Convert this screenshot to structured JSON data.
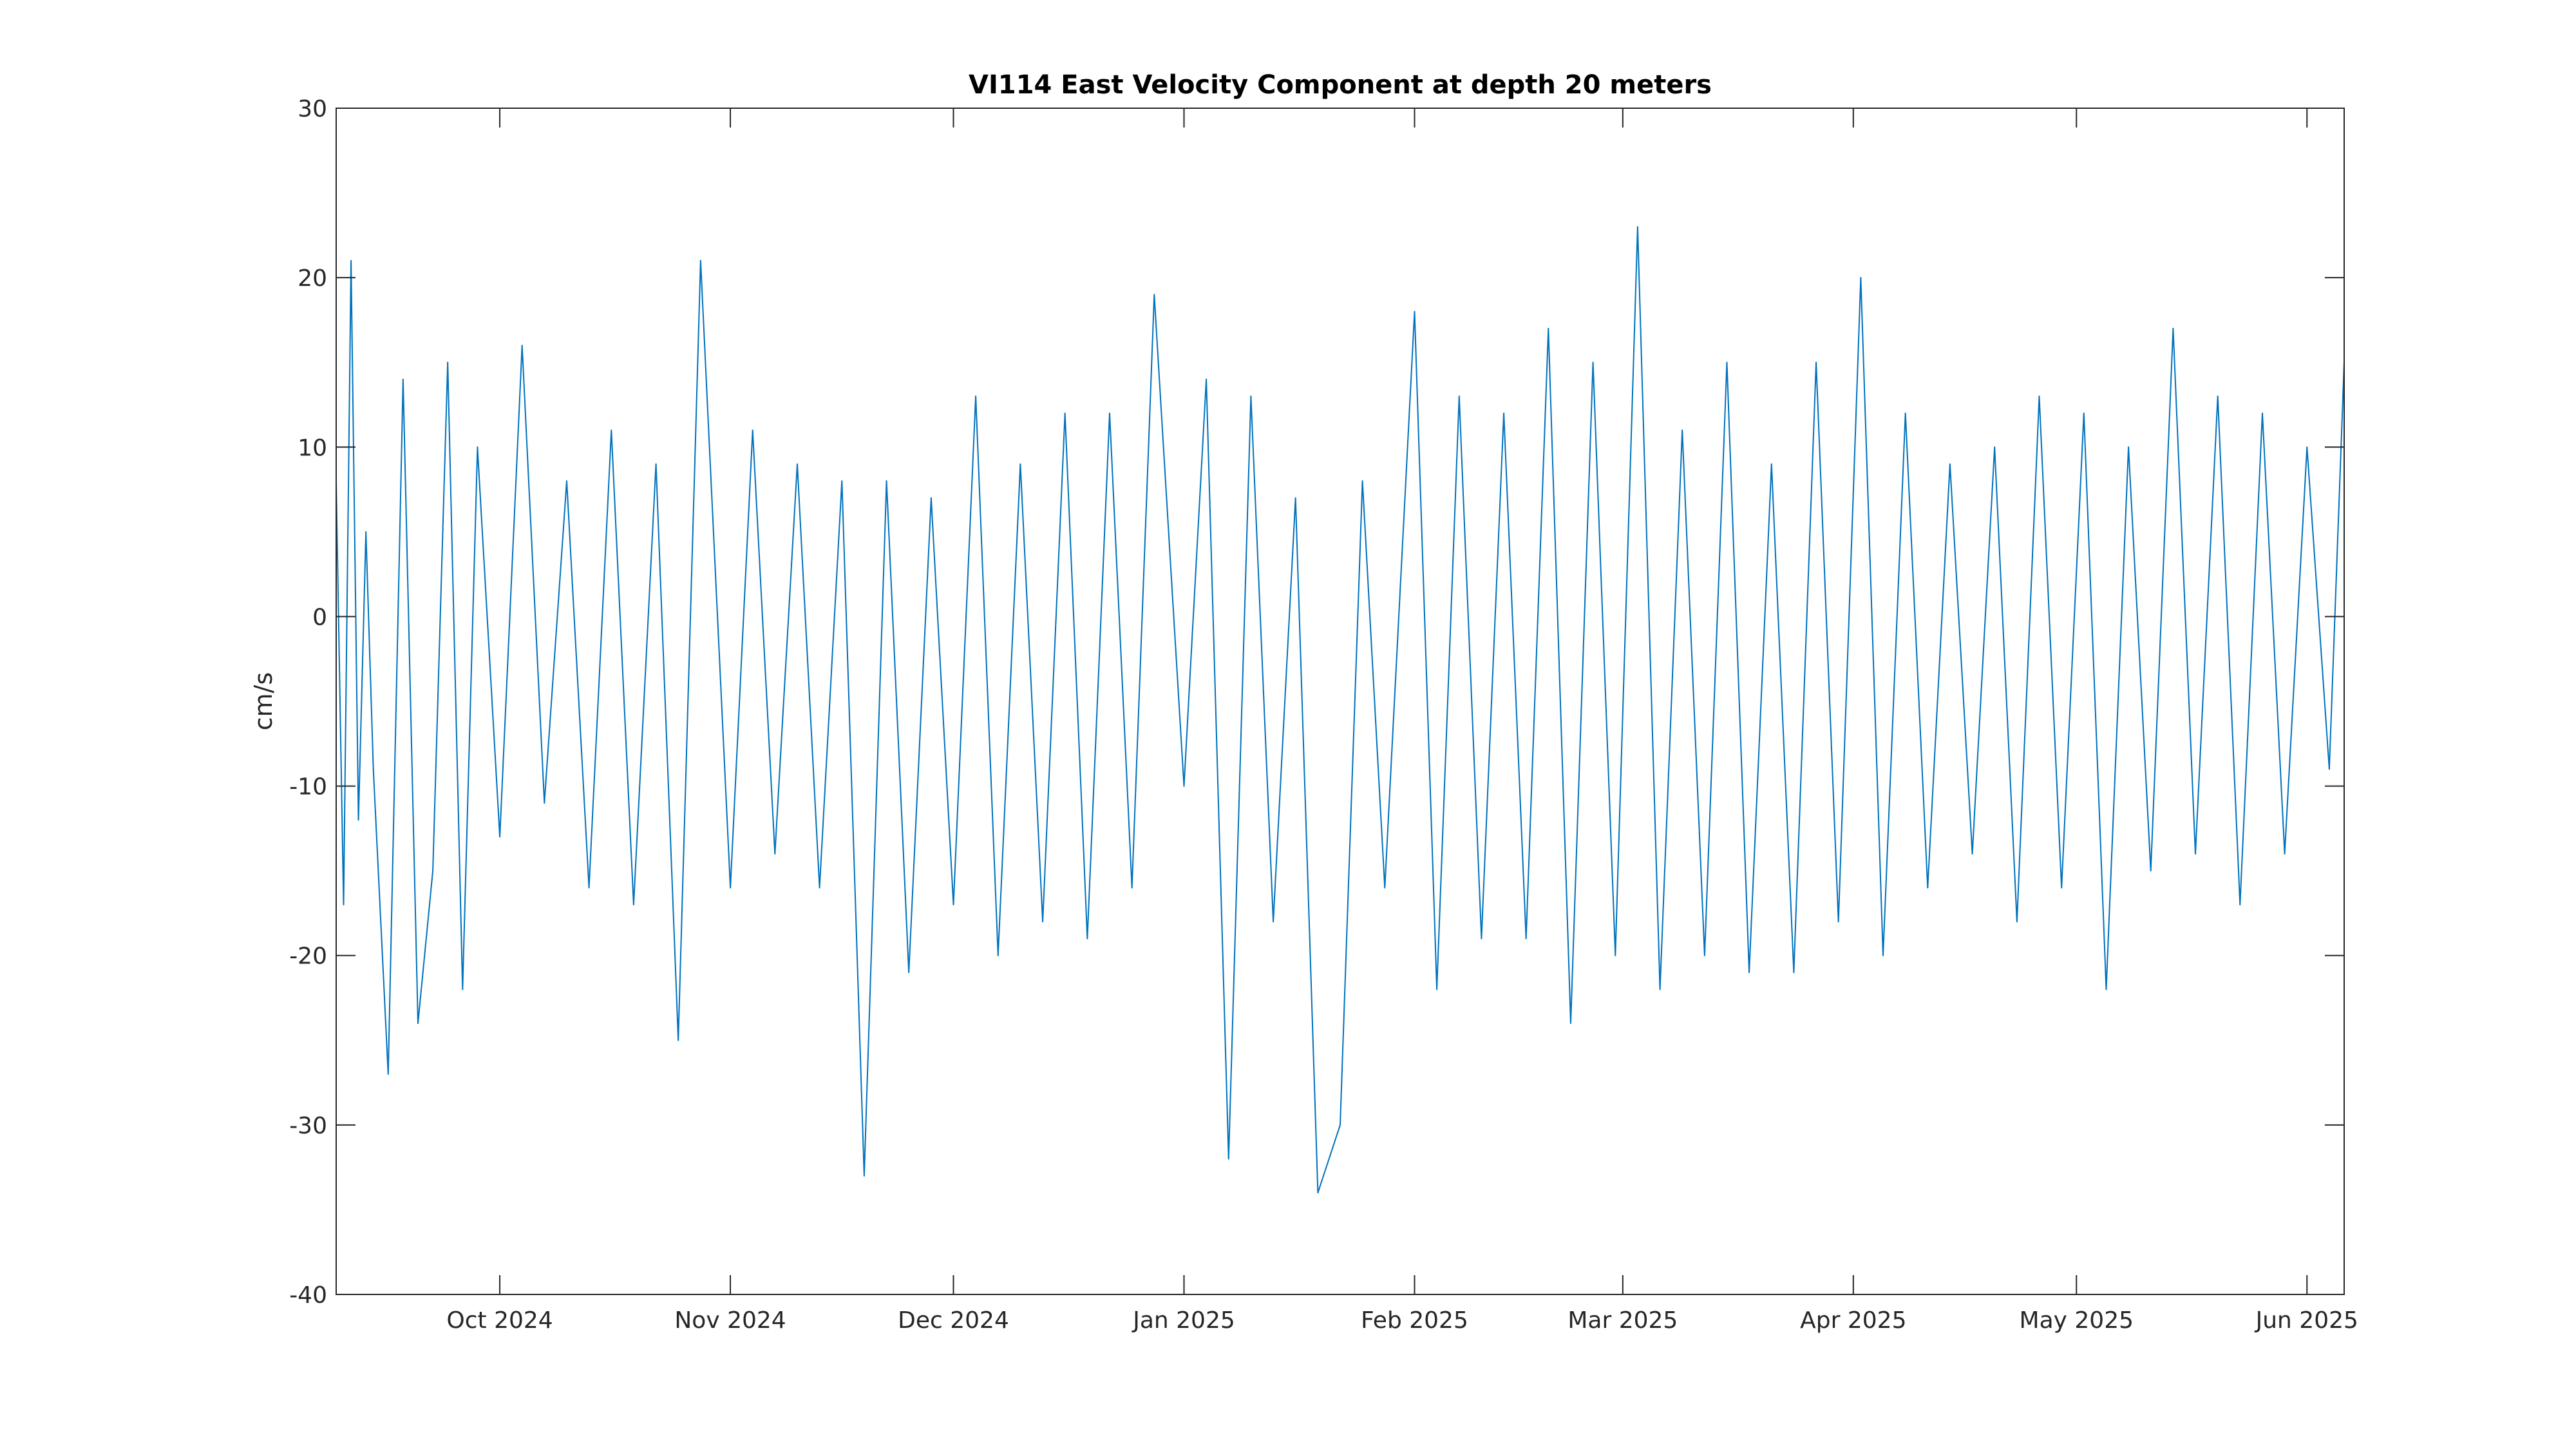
{
  "chart_data": {
    "type": "line",
    "title": "VI114 East Velocity Component at depth 20 meters",
    "xlabel": "",
    "ylabel": "cm/s",
    "ylim": [
      -40,
      30
    ],
    "xlim": [
      "2024-09-09",
      "2025-06-06"
    ],
    "y_ticks": [
      {
        "value": 30,
        "label": "30"
      },
      {
        "value": 20,
        "label": "20"
      },
      {
        "value": 10,
        "label": "10"
      },
      {
        "value": 0,
        "label": "0"
      },
      {
        "value": -10,
        "label": "-10"
      },
      {
        "value": -20,
        "label": "-20"
      },
      {
        "value": -30,
        "label": "-30"
      },
      {
        "value": -40,
        "label": "-40"
      }
    ],
    "x_ticks": [
      {
        "date": "2024-10-01",
        "label": "Oct 2024"
      },
      {
        "date": "2024-11-01",
        "label": "Nov 2024"
      },
      {
        "date": "2024-12-01",
        "label": "Dec 2024"
      },
      {
        "date": "2025-01-01",
        "label": "Jan 2025"
      },
      {
        "date": "2025-02-01",
        "label": "Feb 2025"
      },
      {
        "date": "2025-03-01",
        "label": "Mar 2025"
      },
      {
        "date": "2025-04-01",
        "label": "Apr 2025"
      },
      {
        "date": "2025-05-01",
        "label": "May 2025"
      },
      {
        "date": "2025-06-01",
        "label": "Jun 2025"
      }
    ],
    "grid": false,
    "line_color": "#0072BD",
    "series": [
      {
        "x": [
          "2024-09-09",
          "2024-09-10",
          "2024-09-11",
          "2024-09-12",
          "2024-09-13",
          "2024-09-14",
          "2024-09-16",
          "2024-09-18",
          "2024-09-20",
          "2024-09-22",
          "2024-09-24",
          "2024-09-26",
          "2024-09-28",
          "2024-10-01",
          "2024-10-04",
          "2024-10-07",
          "2024-10-10",
          "2024-10-13",
          "2024-10-16",
          "2024-10-19",
          "2024-10-22",
          "2024-10-25",
          "2024-10-28",
          "2024-11-01",
          "2024-11-04",
          "2024-11-07",
          "2024-11-10",
          "2024-11-13",
          "2024-11-16",
          "2024-11-19",
          "2024-11-22",
          "2024-11-25",
          "2024-11-28",
          "2024-12-01",
          "2024-12-04",
          "2024-12-07",
          "2024-12-10",
          "2024-12-13",
          "2024-12-16",
          "2024-12-19",
          "2024-12-22",
          "2024-12-25",
          "2024-12-28",
          "2025-01-01",
          "2025-01-04",
          "2025-01-07",
          "2025-01-10",
          "2025-01-13",
          "2025-01-16",
          "2025-01-19",
          "2025-01-22",
          "2025-01-25",
          "2025-01-28",
          "2025-02-01",
          "2025-02-04",
          "2025-02-07",
          "2025-02-10",
          "2025-02-13",
          "2025-02-16",
          "2025-02-19",
          "2025-02-22",
          "2025-02-25",
          "2025-02-28",
          "2025-03-03",
          "2025-03-06",
          "2025-03-09",
          "2025-03-12",
          "2025-03-15",
          "2025-03-18",
          "2025-03-21",
          "2025-03-24",
          "2025-03-27",
          "2025-03-30",
          "2025-04-02",
          "2025-04-05",
          "2025-04-08",
          "2025-04-11",
          "2025-04-14",
          "2025-04-17",
          "2025-04-20",
          "2025-04-23",
          "2025-04-26",
          "2025-04-29",
          "2025-05-02",
          "2025-05-05",
          "2025-05-08",
          "2025-05-11",
          "2025-05-14",
          "2025-05-17",
          "2025-05-20",
          "2025-05-23",
          "2025-05-26",
          "2025-05-29",
          "2025-06-01",
          "2025-06-04",
          "2025-06-06"
        ],
        "y": [
          8,
          -17,
          21,
          -12,
          5,
          -9,
          -27,
          14,
          -24,
          -15,
          15,
          -22,
          10,
          -13,
          16,
          -11,
          8,
          -16,
          11,
          -17,
          9,
          -25,
          21,
          -16,
          11,
          -14,
          9,
          -16,
          8,
          -33,
          8,
          -21,
          7,
          -17,
          13,
          -20,
          9,
          -18,
          12,
          -19,
          12,
          -16,
          19,
          -10,
          14,
          -32,
          13,
          -18,
          7,
          -34,
          -30,
          8,
          -16,
          18,
          -22,
          13,
          -19,
          12,
          -19,
          17,
          -24,
          15,
          -20,
          23,
          -22,
          11,
          -20,
          15,
          -21,
          9,
          -21,
          15,
          -18,
          20,
          -20,
          12,
          -16,
          9,
          -14,
          10,
          -18,
          13,
          -16,
          12,
          -22,
          10,
          -15,
          17,
          -14,
          13,
          -17,
          12,
          -14,
          10,
          -9,
          15
        ]
      }
    ]
  }
}
